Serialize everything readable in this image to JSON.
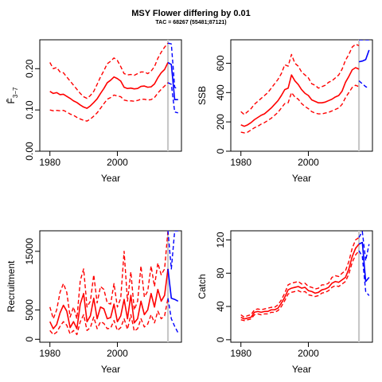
{
  "title": "MSY Flower differing by 0.01",
  "subtitle": "TAC = 68267 (55481;87121)",
  "chart_data": [
    {
      "type": "line",
      "id": "f",
      "xlabel": "Year",
      "ylabel": "F̄",
      "ylabel_sub": "3−7",
      "xlim": [
        1977,
        2019
      ],
      "ylim": [
        0,
        0.27
      ],
      "xticks": [
        1980,
        2000
      ],
      "yticks": [
        0.0,
        0.1,
        0.2
      ],
      "ytick_labels": [
        "0.00",
        "0.10",
        "0.20"
      ],
      "vline_x": 2015,
      "years": [
        1980,
        1981,
        1982,
        1983,
        1984,
        1985,
        1986,
        1987,
        1988,
        1989,
        1990,
        1991,
        1992,
        1993,
        1994,
        1995,
        1996,
        1997,
        1998,
        1999,
        2000,
        2001,
        2002,
        2003,
        2004,
        2005,
        2006,
        2007,
        2008,
        2009,
        2010,
        2011,
        2012,
        2013,
        2014,
        2015
      ],
      "series": [
        {
          "role": "estimate",
          "values": [
            0.145,
            0.14,
            0.142,
            0.137,
            0.138,
            0.133,
            0.128,
            0.122,
            0.118,
            0.112,
            0.107,
            0.104,
            0.11,
            0.118,
            0.127,
            0.14,
            0.152,
            0.166,
            0.172,
            0.18,
            0.176,
            0.17,
            0.155,
            0.152,
            0.153,
            0.151,
            0.152,
            0.157,
            0.158,
            0.155,
            0.156,
            0.163,
            0.178,
            0.19,
            0.198,
            0.215
          ]
        },
        {
          "role": "upper",
          "values": [
            0.215,
            0.2,
            0.203,
            0.192,
            0.19,
            0.18,
            0.17,
            0.16,
            0.15,
            0.14,
            0.132,
            0.128,
            0.135,
            0.145,
            0.162,
            0.18,
            0.195,
            0.212,
            0.218,
            0.226,
            0.22,
            0.205,
            0.188,
            0.185,
            0.186,
            0.184,
            0.188,
            0.192,
            0.192,
            0.188,
            0.194,
            0.205,
            0.225,
            0.24,
            0.252,
            0.262
          ]
        },
        {
          "role": "lower",
          "values": [
            0.1,
            0.098,
            0.099,
            0.098,
            0.099,
            0.095,
            0.09,
            0.087,
            0.082,
            0.078,
            0.075,
            0.073,
            0.078,
            0.085,
            0.093,
            0.104,
            0.115,
            0.126,
            0.13,
            0.136,
            0.134,
            0.132,
            0.124,
            0.122,
            0.122,
            0.121,
            0.123,
            0.126,
            0.126,
            0.124,
            0.125,
            0.13,
            0.141,
            0.15,
            0.158,
            0.166
          ]
        }
      ],
      "forecast_years": [
        2015,
        2016,
        2017,
        2018
      ],
      "forecast": [
        {
          "role": "estimate",
          "values": [
            0.215,
            0.21,
            0.125,
            0.125
          ]
        },
        {
          "role": "upper",
          "values": [
            0.262,
            0.26,
            0.155,
            0.15
          ]
        },
        {
          "role": "lower",
          "values": [
            0.166,
            0.162,
            0.095,
            0.093
          ]
        }
      ]
    },
    {
      "type": "line",
      "id": "ssb",
      "xlabel": "Year",
      "ylabel": "SSB",
      "xlim": [
        1977,
        2019
      ],
      "ylim": [
        0,
        760
      ],
      "xticks": [
        1980,
        2000
      ],
      "yticks": [
        0,
        200,
        400,
        600
      ],
      "ytick_labels": [
        "0",
        "200",
        "400",
        "600"
      ],
      "vline_x": 2015,
      "years": [
        1980,
        1981,
        1982,
        1983,
        1984,
        1985,
        1986,
        1987,
        1988,
        1989,
        1990,
        1991,
        1992,
        1993,
        1994,
        1995,
        1996,
        1997,
        1998,
        1999,
        2000,
        2001,
        2002,
        2003,
        2004,
        2005,
        2006,
        2007,
        2008,
        2009,
        2010,
        2011,
        2012,
        2013,
        2014,
        2015
      ],
      "series": [
        {
          "role": "estimate",
          "values": [
            180,
            170,
            180,
            195,
            215,
            230,
            245,
            255,
            275,
            295,
            320,
            345,
            380,
            420,
            430,
            520,
            480,
            455,
            420,
            395,
            380,
            350,
            340,
            330,
            330,
            335,
            345,
            355,
            370,
            380,
            410,
            470,
            510,
            555,
            570,
            560
          ]
        },
        {
          "role": "upper",
          "values": [
            270,
            250,
            270,
            290,
            320,
            340,
            360,
            380,
            400,
            430,
            460,
            490,
            530,
            590,
            580,
            660,
            600,
            580,
            540,
            520,
            500,
            460,
            450,
            430,
            440,
            450,
            470,
            480,
            500,
            520,
            560,
            620,
            660,
            710,
            730,
            720
          ]
        },
        {
          "role": "lower",
          "values": [
            130,
            125,
            130,
            145,
            160,
            170,
            185,
            195,
            210,
            225,
            245,
            265,
            295,
            325,
            330,
            400,
            370,
            355,
            325,
            305,
            290,
            270,
            260,
            255,
            255,
            260,
            265,
            275,
            285,
            295,
            320,
            365,
            400,
            435,
            450,
            440
          ]
        }
      ],
      "forecast_years": [
        2015,
        2016,
        2017,
        2018
      ],
      "forecast": [
        {
          "role": "estimate",
          "values": [
            610,
            615,
            625,
            690
          ]
        },
        {
          "role": "upper",
          "values": [
            760,
            760,
            760,
            760
          ]
        },
        {
          "role": "lower",
          "values": [
            480,
            460,
            440,
            430
          ]
        }
      ]
    },
    {
      "type": "line",
      "id": "recruitment",
      "xlabel": "Year",
      "ylabel": "Recruitment",
      "xlim": [
        1977,
        2019
      ],
      "ylim": [
        -500,
        18500
      ],
      "xticks": [
        1980,
        2000
      ],
      "yticks": [
        0,
        5000,
        15000
      ],
      "ytick_labels": [
        "0",
        "5000",
        "15000"
      ],
      "vline_x": 2015,
      "years": [
        1980,
        1981,
        1982,
        1983,
        1984,
        1985,
        1986,
        1987,
        1988,
        1989,
        1990,
        1991,
        1992,
        1993,
        1994,
        1995,
        1996,
        1997,
        1998,
        1999,
        2000,
        2001,
        2002,
        2003,
        2004,
        2005,
        2006,
        2007,
        2008,
        2009,
        2010,
        2011,
        2012,
        2013,
        2014,
        2015
      ],
      "series": [
        {
          "role": "estimate",
          "values": [
            3000,
            1800,
            2500,
            4500,
            5800,
            4800,
            2000,
            3000,
            1800,
            6000,
            7800,
            3000,
            4000,
            7000,
            3500,
            5500,
            5200,
            3500,
            3700,
            6000,
            3000,
            4000,
            6800,
            3500,
            7500,
            2800,
            3500,
            6500,
            4200,
            5000,
            7800,
            5500,
            8500,
            6500,
            7500,
            12000
          ]
        },
        {
          "role": "upper",
          "values": [
            5500,
            3500,
            5000,
            8000,
            9500,
            8000,
            3800,
            5500,
            3500,
            10000,
            12000,
            5500,
            6500,
            11000,
            6200,
            9000,
            8500,
            6200,
            6000,
            9500,
            5500,
            7000,
            15000,
            6500,
            11500,
            5000,
            6500,
            12500,
            7200,
            8200,
            12500,
            9000,
            13000,
            11000,
            12000,
            18500
          ]
        },
        {
          "role": "lower",
          "values": [
            1500,
            800,
            1200,
            2200,
            3000,
            2400,
            900,
            1500,
            800,
            3000,
            4200,
            1500,
            2000,
            3800,
            1800,
            3000,
            2700,
            1800,
            1900,
            3200,
            1500,
            2000,
            3500,
            1700,
            4200,
            1400,
            1800,
            3500,
            2100,
            2600,
            4200,
            2800,
            4800,
            3500,
            4000,
            7000
          ]
        }
      ],
      "forecast_years": [
        2015,
        2016,
        2017,
        2018
      ],
      "forecast": [
        {
          "role": "estimate",
          "values": [
            12000,
            7000,
            6800,
            6500
          ]
        },
        {
          "role": "upper",
          "values": [
            18500,
            12000,
            18500,
            18500
          ]
        },
        {
          "role": "lower",
          "values": [
            7000,
            3500,
            2200,
            1100
          ]
        }
      ]
    },
    {
      "type": "line",
      "id": "catch",
      "xlabel": "Year",
      "ylabel": "Catch",
      "xlim": [
        1977,
        2019
      ],
      "ylim": [
        -3,
        131
      ],
      "xticks": [
        1980,
        2000
      ],
      "yticks": [
        0,
        40,
        80,
        120
      ],
      "ytick_labels": [
        "0",
        "40",
        "80",
        "120"
      ],
      "vline_x": 2015,
      "years": [
        1980,
        1981,
        1982,
        1983,
        1984,
        1985,
        1986,
        1987,
        1988,
        1989,
        1990,
        1991,
        1992,
        1993,
        1994,
        1995,
        1996,
        1997,
        1998,
        1999,
        2000,
        2001,
        2002,
        2003,
        2004,
        2005,
        2006,
        2007,
        2008,
        2009,
        2010,
        2011,
        2012,
        2013,
        2014,
        2015
      ],
      "series": [
        {
          "role": "estimate",
          "values": [
            27,
            25,
            26,
            27,
            33,
            34,
            33,
            34,
            34,
            36,
            36,
            38,
            44,
            51,
            60,
            62,
            63,
            64,
            62,
            63,
            59,
            58,
            56,
            57,
            60,
            61,
            63,
            68,
            70,
            69,
            72,
            75,
            85,
            100,
            110,
            115
          ]
        },
        {
          "role": "upper",
          "values": [
            30,
            27,
            29,
            30,
            36,
            37,
            36,
            37,
            38,
            39,
            39,
            42,
            48,
            56,
            66,
            68,
            69,
            70,
            67,
            68,
            64,
            63,
            61,
            62,
            66,
            66,
            68,
            75,
            77,
            76,
            80,
            83,
            94,
            110,
            120,
            123
          ]
        },
        {
          "role": "lower",
          "values": [
            24,
            23,
            24,
            25,
            30,
            31,
            30,
            31,
            31,
            33,
            33,
            35,
            40,
            47,
            55,
            57,
            58,
            59,
            57,
            58,
            54,
            53,
            52,
            53,
            56,
            57,
            59,
            63,
            65,
            64,
            67,
            70,
            79,
            93,
            102,
            107
          ]
        }
      ],
      "forecast_years": [
        2015,
        2016,
        2017,
        2018
      ],
      "forecast": [
        {
          "role": "estimate",
          "values": [
            115,
            117,
            70,
            75
          ]
        },
        {
          "role": "upper",
          "values": [
            123,
            130,
            95,
            115
          ]
        },
        {
          "role": "lower",
          "values": [
            107,
            100,
            58,
            53
          ]
        }
      ]
    }
  ]
}
